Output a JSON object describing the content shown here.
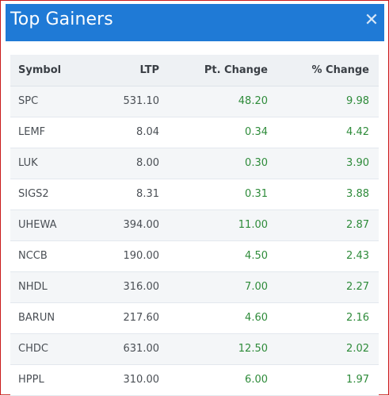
{
  "panel": {
    "title": "Top Gainers",
    "close_label": "✕"
  },
  "table": {
    "headers": [
      "Symbol",
      "LTP",
      "Pt. Change",
      "% Change"
    ],
    "rows": [
      {
        "symbol": "SPC",
        "ltp": "531.10",
        "pt_change": "48.20",
        "pct_change": "9.98"
      },
      {
        "symbol": "LEMF",
        "ltp": "8.04",
        "pt_change": "0.34",
        "pct_change": "4.42"
      },
      {
        "symbol": "LUK",
        "ltp": "8.00",
        "pt_change": "0.30",
        "pct_change": "3.90"
      },
      {
        "symbol": "SIGS2",
        "ltp": "8.31",
        "pt_change": "0.31",
        "pct_change": "3.88"
      },
      {
        "symbol": "UHEWA",
        "ltp": "394.00",
        "pt_change": "11.00",
        "pct_change": "2.87"
      },
      {
        "symbol": "NCCB",
        "ltp": "190.00",
        "pt_change": "4.50",
        "pct_change": "2.43"
      },
      {
        "symbol": "NHDL",
        "ltp": "316.00",
        "pt_change": "7.00",
        "pct_change": "2.27"
      },
      {
        "symbol": "BARUN",
        "ltp": "217.60",
        "pt_change": "4.60",
        "pct_change": "2.16"
      },
      {
        "symbol": "CHDC",
        "ltp": "631.00",
        "pt_change": "12.50",
        "pct_change": "2.02"
      },
      {
        "symbol": "HPPL",
        "ltp": "310.00",
        "pt_change": "6.00",
        "pct_change": "1.97"
      }
    ]
  },
  "colors": {
    "header_bg": "#1f7ad6",
    "gain_text": "#2e8b3a",
    "border": "#c91b1b"
  }
}
